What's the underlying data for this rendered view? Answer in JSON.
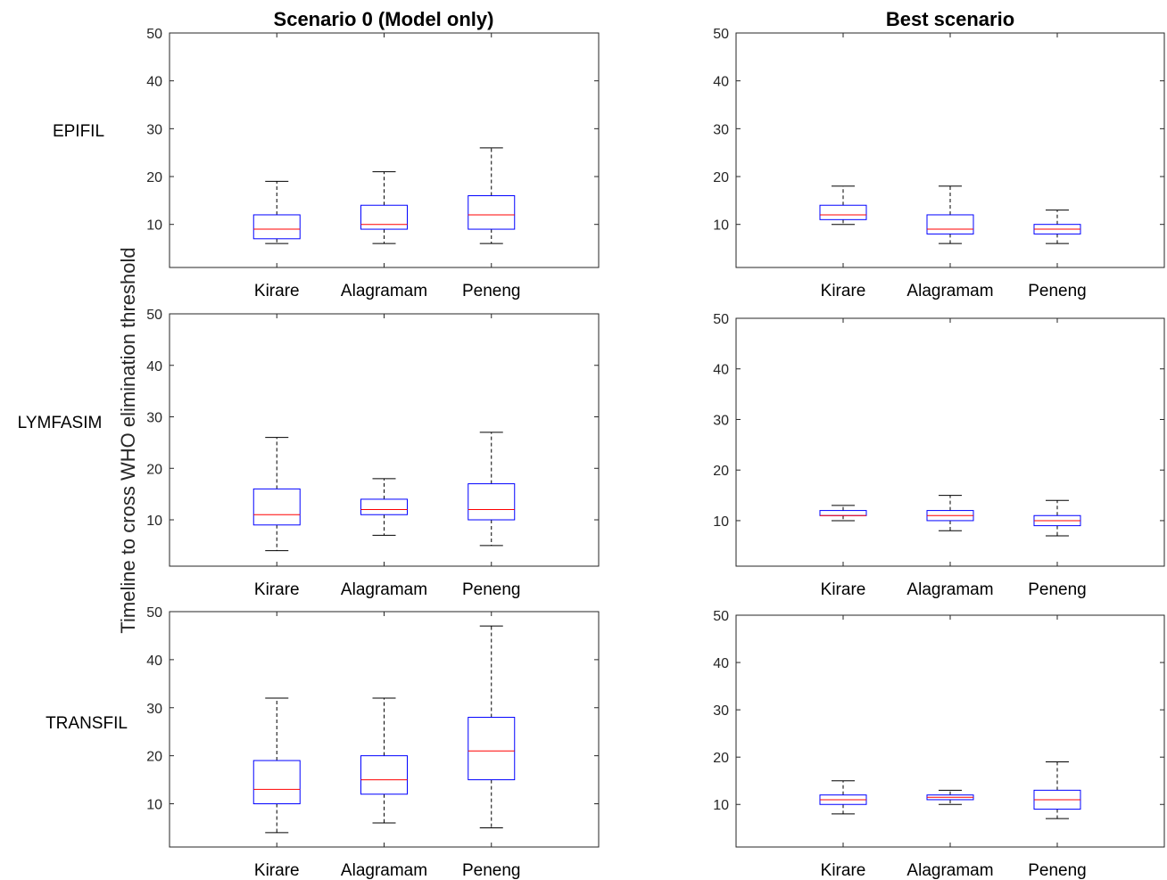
{
  "figure": {
    "ylabel": "Timeline to cross WHO elimination threshold",
    "column_titles": [
      "Scenario 0 (Model only)",
      "Best scenario"
    ],
    "row_labels": [
      "EPIFIL",
      "LYMFASIM",
      "TRANSFIL"
    ]
  },
  "colors": {
    "box": "#0000ff",
    "median": "#ff0000",
    "whisker": "#000000",
    "axes": "#262626"
  },
  "chart_data": [
    {
      "type": "box",
      "row": "EPIFIL",
      "column": "Scenario 0 (Model only)",
      "categories": [
        "Kirare",
        "Alagramam",
        "Peneng"
      ],
      "yticks": [
        10,
        20,
        30,
        40,
        50
      ],
      "ylim": [
        1,
        50
      ],
      "grid": false,
      "boxes": [
        {
          "min": 6,
          "q1": 7,
          "median": 9,
          "q3": 12,
          "max": 19
        },
        {
          "min": 6,
          "q1": 9,
          "median": 10,
          "q3": 14,
          "max": 21
        },
        {
          "min": 6,
          "q1": 9,
          "median": 12,
          "q3": 16,
          "max": 26
        }
      ]
    },
    {
      "type": "box",
      "row": "EPIFIL",
      "column": "Best scenario",
      "categories": [
        "Kirare",
        "Alagramam",
        "Peneng"
      ],
      "yticks": [
        10,
        20,
        30,
        40,
        50
      ],
      "ylim": [
        1,
        50
      ],
      "grid": false,
      "boxes": [
        {
          "min": 10,
          "q1": 11,
          "median": 12,
          "q3": 14,
          "max": 18
        },
        {
          "min": 6,
          "q1": 8,
          "median": 9,
          "q3": 12,
          "max": 18
        },
        {
          "min": 6,
          "q1": 8,
          "median": 9,
          "q3": 10,
          "max": 13
        }
      ]
    },
    {
      "type": "box",
      "row": "LYMFASIM",
      "column": "Scenario 0 (Model only)",
      "categories": [
        "Kirare",
        "Alagramam",
        "Peneng"
      ],
      "yticks": [
        10,
        20,
        30,
        40,
        50
      ],
      "ylim": [
        1,
        50
      ],
      "grid": false,
      "boxes": [
        {
          "min": 4,
          "q1": 9,
          "median": 11,
          "q3": 16,
          "max": 26
        },
        {
          "min": 7,
          "q1": 11,
          "median": 12,
          "q3": 14,
          "max": 18
        },
        {
          "min": 5,
          "q1": 10,
          "median": 12,
          "q3": 17,
          "max": 27
        }
      ]
    },
    {
      "type": "box",
      "row": "LYMFASIM",
      "column": "Best scenario",
      "categories": [
        "Kirare",
        "Alagramam",
        "Peneng"
      ],
      "yticks": [
        10,
        20,
        30,
        40,
        50
      ],
      "ylim": [
        1,
        50
      ],
      "grid": false,
      "boxes": [
        {
          "min": 10,
          "q1": 11,
          "median": 11,
          "q3": 12,
          "max": 13
        },
        {
          "min": 8,
          "q1": 10,
          "median": 11,
          "q3": 12,
          "max": 15
        },
        {
          "min": 7,
          "q1": 9,
          "median": 10,
          "q3": 11,
          "max": 14
        }
      ]
    },
    {
      "type": "box",
      "row": "TRANSFIL",
      "column": "Scenario 0 (Model only)",
      "categories": [
        "Kirare",
        "Alagramam",
        "Peneng"
      ],
      "yticks": [
        10,
        20,
        30,
        40,
        50
      ],
      "ylim": [
        1,
        50
      ],
      "grid": false,
      "boxes": [
        {
          "min": 4,
          "q1": 10,
          "median": 13,
          "q3": 19,
          "max": 32
        },
        {
          "min": 6,
          "q1": 12,
          "median": 15,
          "q3": 20,
          "max": 32
        },
        {
          "min": 5,
          "q1": 15,
          "median": 21,
          "q3": 28,
          "max": 47
        }
      ]
    },
    {
      "type": "box",
      "row": "TRANSFIL",
      "column": "Best scenario",
      "categories": [
        "Kirare",
        "Alagramam",
        "Peneng"
      ],
      "yticks": [
        10,
        20,
        30,
        40,
        50
      ],
      "ylim": [
        1,
        50
      ],
      "grid": false,
      "boxes": [
        {
          "min": 8,
          "q1": 10,
          "median": 11,
          "q3": 12,
          "max": 15
        },
        {
          "min": 10,
          "q1": 11,
          "median": 11.5,
          "q3": 12,
          "max": 13
        },
        {
          "min": 7,
          "q1": 9,
          "median": 11,
          "q3": 13,
          "max": 19
        }
      ]
    }
  ]
}
